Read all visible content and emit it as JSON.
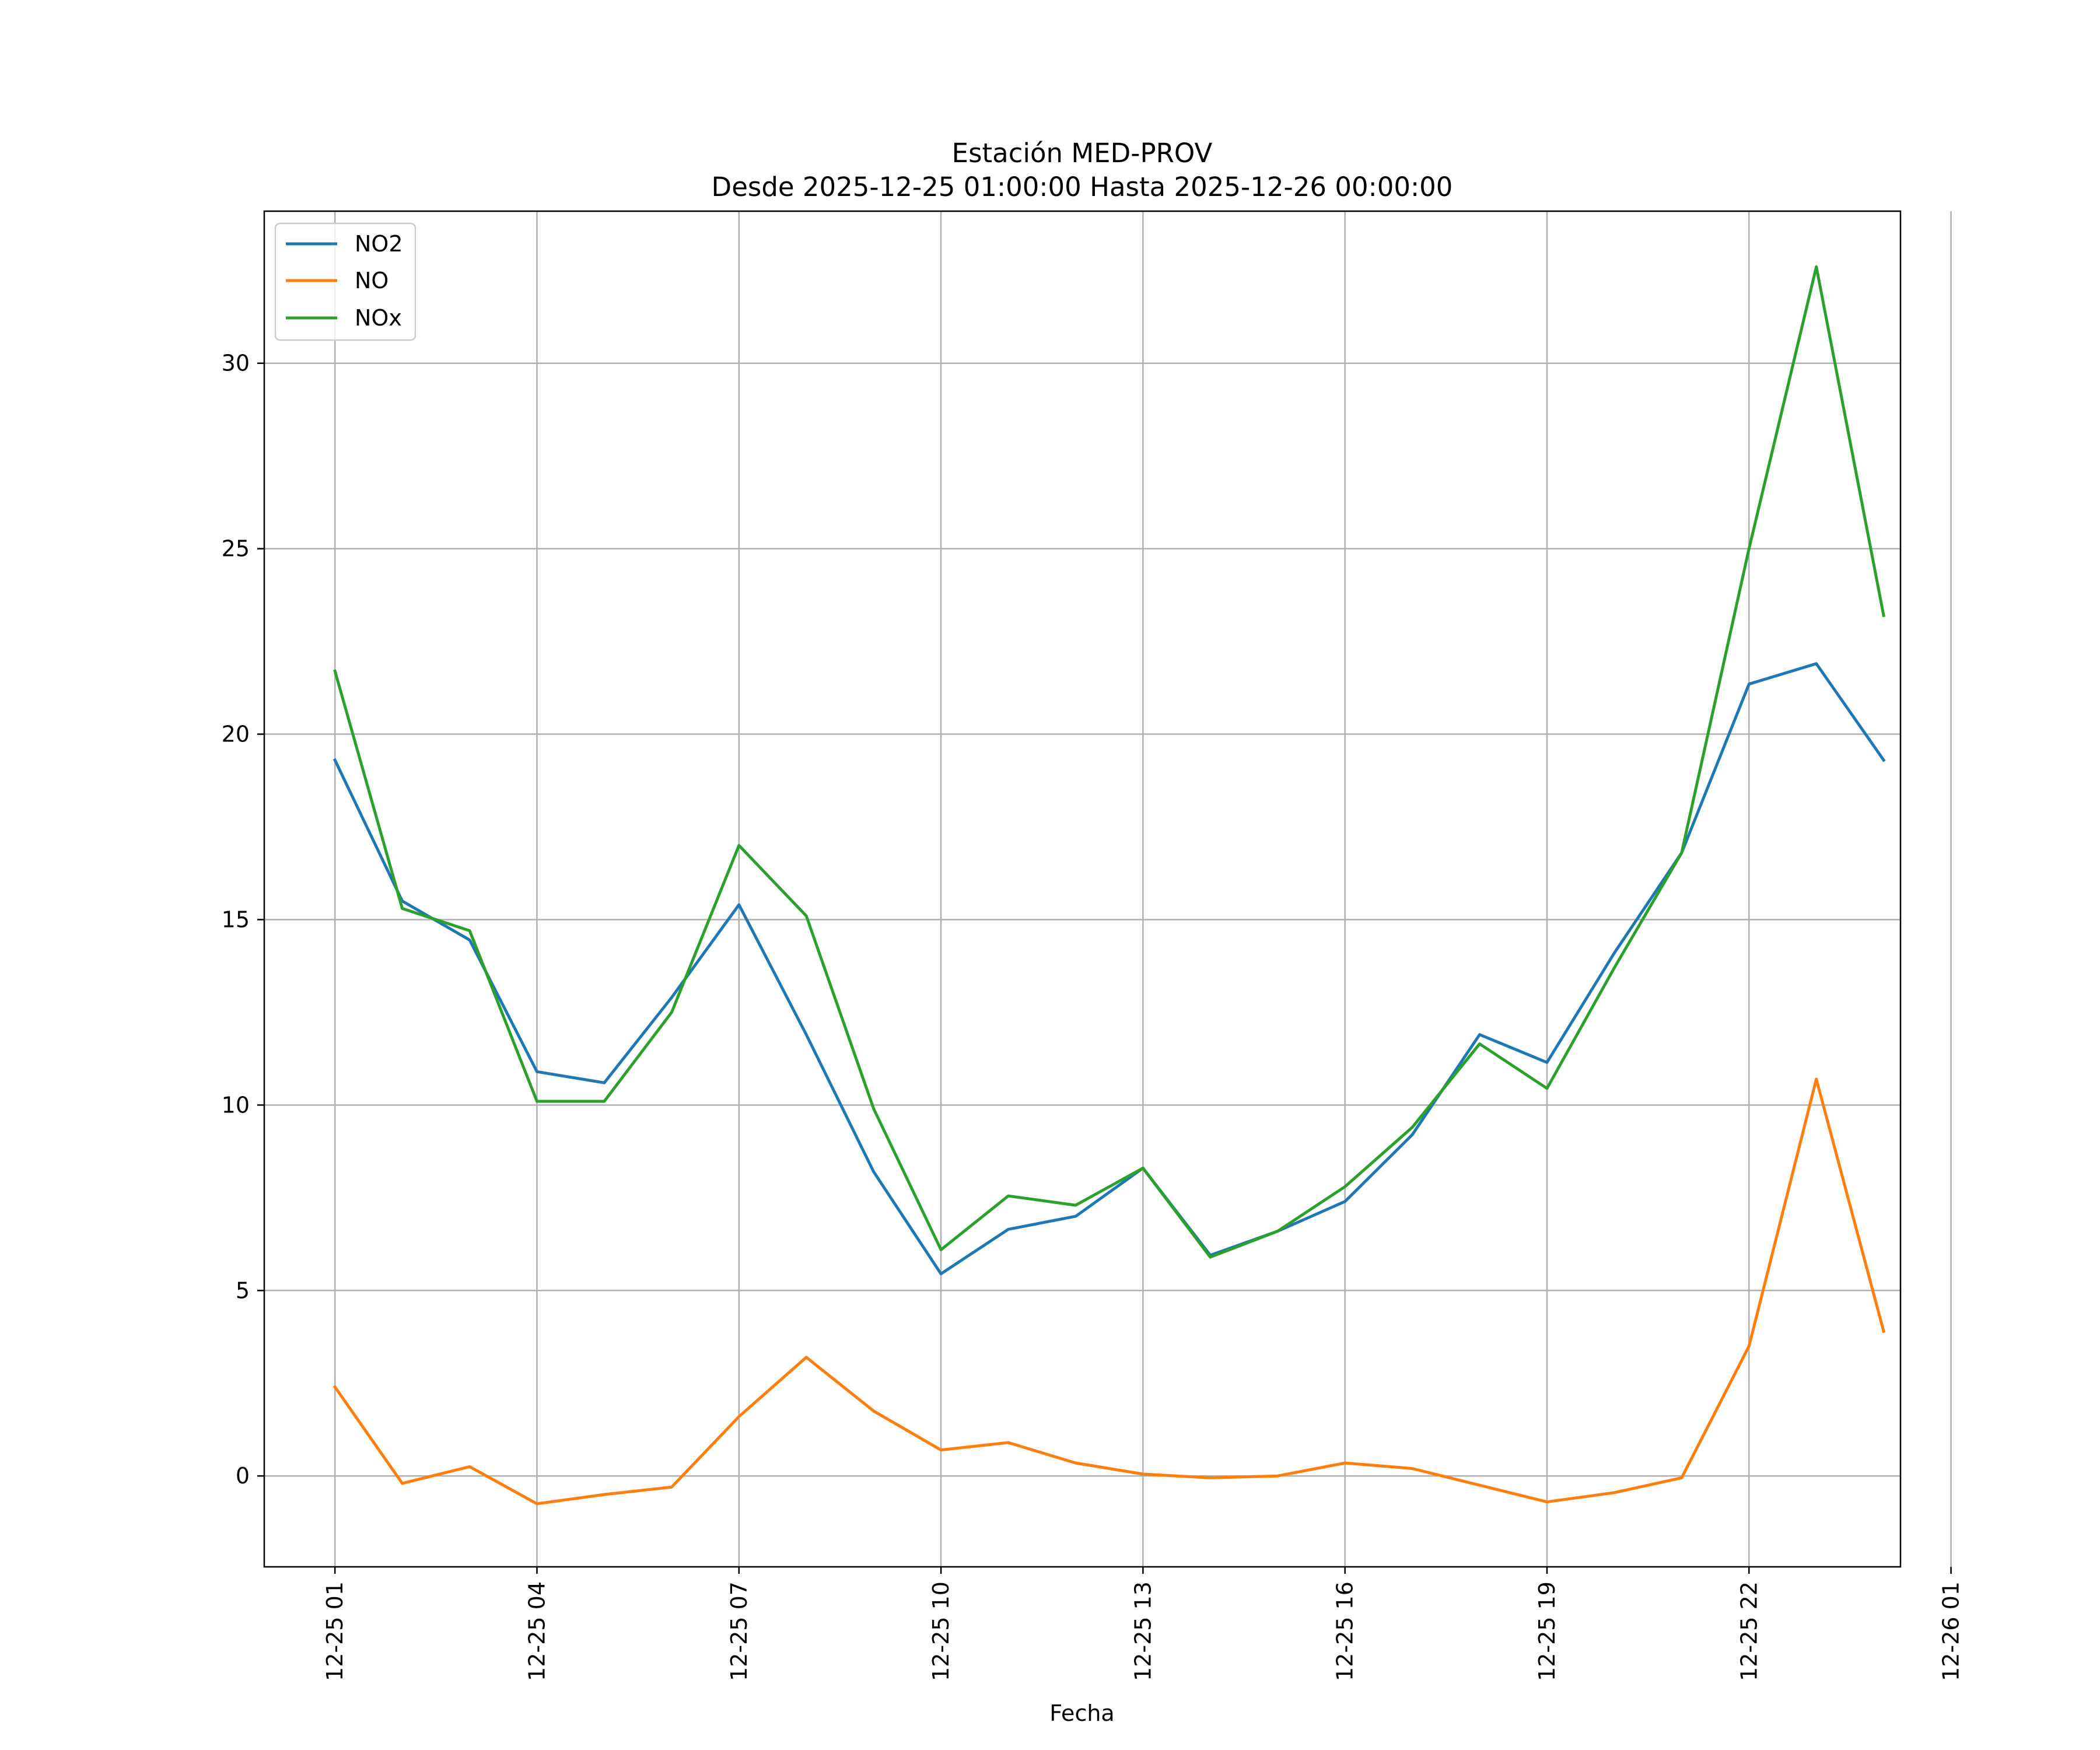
{
  "chart_data": {
    "type": "line",
    "title_line1": "Estación MED-PROV",
    "title_line2": "Desde 2025-12-25 01:00:00 Hasta 2025-12-26 00:00:00",
    "xlabel": "Fecha",
    "ylabel": "",
    "grid": true,
    "legend_position": "top-left",
    "x_hours": [
      1,
      2,
      3,
      4,
      5,
      6,
      7,
      8,
      9,
      10,
      11,
      12,
      13,
      14,
      15,
      16,
      17,
      18,
      19,
      20,
      21,
      22,
      23,
      24
    ],
    "x_range_hours": [
      -0.05,
      24.25
    ],
    "ylim": [
      -2.45,
      34.1
    ],
    "yticks": [
      0,
      5,
      10,
      15,
      20,
      25,
      30
    ],
    "ytick_labels": [
      "0",
      "5",
      "10",
      "15",
      "20",
      "25",
      "30"
    ],
    "xticks_hours": [
      1,
      4,
      7,
      10,
      13,
      16,
      19,
      22,
      25
    ],
    "xtick_labels": [
      "12-25 01",
      "12-25 04",
      "12-25 07",
      "12-25 10",
      "12-25 13",
      "12-25 16",
      "12-25 19",
      "12-25 22",
      "12-26 01"
    ],
    "series": [
      {
        "name": "NO2",
        "color": "#1f77b4",
        "values": [
          19.3,
          15.5,
          14.45,
          10.9,
          10.6,
          12.9,
          15.4,
          11.9,
          8.2,
          5.45,
          6.65,
          7.0,
          8.3,
          5.95,
          6.6,
          7.4,
          9.2,
          11.9,
          11.15,
          14.1,
          16.8,
          21.35,
          21.9,
          19.3
        ]
      },
      {
        "name": "NO",
        "color": "#ff7f0e",
        "values": [
          2.4,
          -0.2,
          0.25,
          -0.75,
          -0.5,
          -0.3,
          1.6,
          3.2,
          1.75,
          0.7,
          0.9,
          0.35,
          0.05,
          -0.05,
          0.0,
          0.35,
          0.2,
          -0.25,
          -0.7,
          -0.45,
          -0.05,
          3.5,
          10.7,
          3.9
        ]
      },
      {
        "name": "NOx",
        "color": "#2ca02c",
        "values": [
          21.7,
          15.3,
          14.7,
          10.1,
          10.1,
          12.5,
          17.0,
          15.1,
          9.9,
          6.1,
          7.55,
          7.3,
          8.3,
          5.9,
          6.6,
          7.8,
          9.4,
          11.65,
          10.45,
          13.7,
          16.8,
          25.0,
          32.6,
          23.2
        ]
      }
    ]
  }
}
